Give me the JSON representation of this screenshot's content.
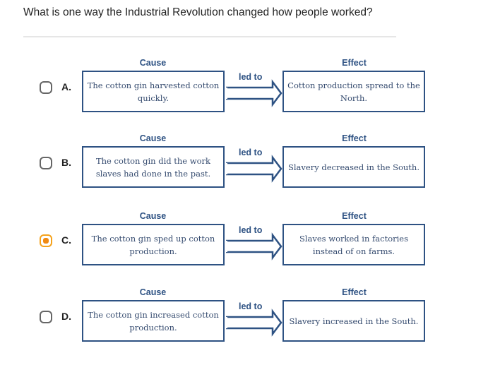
{
  "question": "What is one way the Industrial Revolution changed how people worked?",
  "selected": "C",
  "options": [
    {
      "letter": "A.",
      "cause_label": "Cause",
      "effect_label": "Effect",
      "link": "led to",
      "cause": "The cotton gin harvested cotton quickly.",
      "effect": "Cotton production spread to the North.",
      "selected": false
    },
    {
      "letter": "B.",
      "cause_label": "Cause",
      "effect_label": "Effect",
      "link": "led to",
      "cause": "The cotton gin did the work slaves had done in the past.",
      "effect": "Slavery decreased in the South.",
      "selected": false
    },
    {
      "letter": "C.",
      "cause_label": "Cause",
      "effect_label": "Effect",
      "link": "led to",
      "cause": "The cotton gin sped up cotton production.",
      "effect": "Slaves worked in factories instead of on farms.",
      "selected": true
    },
    {
      "letter": "D.",
      "cause_label": "Cause",
      "effect_label": "Effect",
      "link": "led to",
      "cause": "The cotton gin increased cotton production.",
      "effect": "Slavery increased in the South.",
      "selected": false
    }
  ],
  "colors": {
    "box": "#2e5283",
    "selected": "#f08a12"
  }
}
